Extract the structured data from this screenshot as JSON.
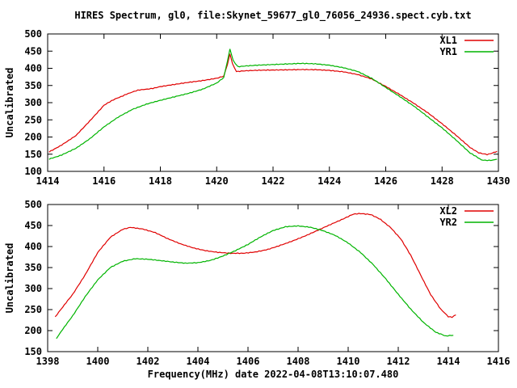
{
  "figure": {
    "title": "HIRES Spectrum, gl0, file:Skynet_59677_gl0_76056_24936.spect.cyb.txt",
    "xlabel": "Frequency(MHz) date 2022-04-08T13:10:07.480",
    "background": "#ffffff",
    "axis_color": "#000000",
    "series_colors": {
      "red": "#e00000",
      "green": "#00b400"
    }
  },
  "chart_data": [
    {
      "id": "top",
      "type": "line",
      "ylabel": "Uncalibrated",
      "xlim": [
        1414,
        1430
      ],
      "ylim": [
        100,
        500
      ],
      "xticks": [
        1414,
        1416,
        1418,
        1420,
        1422,
        1424,
        1426,
        1428,
        1430
      ],
      "yticks": [
        100,
        150,
        200,
        250,
        300,
        350,
        400,
        450,
        500
      ],
      "grid": false,
      "legend_position": "top-right",
      "series": [
        {
          "name": "XL1",
          "color": "#e00000",
          "points": [
            [
              1414.05,
              157
            ],
            [
              1414.5,
              178
            ],
            [
              1415,
              205
            ],
            [
              1415.5,
              248
            ],
            [
              1416,
              293
            ],
            [
              1416.4,
              310
            ],
            [
              1416.8,
              326
            ],
            [
              1417.2,
              335
            ],
            [
              1417.6,
              341
            ],
            [
              1418,
              346
            ],
            [
              1418.5,
              352
            ],
            [
              1419,
              358
            ],
            [
              1419.5,
              363
            ],
            [
              1420,
              370
            ],
            [
              1420.25,
              376
            ],
            [
              1420.38,
              410
            ],
            [
              1420.47,
              443
            ],
            [
              1420.56,
              412
            ],
            [
              1420.7,
              391
            ],
            [
              1421,
              392
            ],
            [
              1421.5,
              394
            ],
            [
              1422,
              395
            ],
            [
              1422.5,
              396
            ],
            [
              1423,
              397
            ],
            [
              1423.5,
              397
            ],
            [
              1424,
              395
            ],
            [
              1424.5,
              391
            ],
            [
              1425,
              383
            ],
            [
              1425.5,
              370
            ],
            [
              1426,
              348
            ],
            [
              1426.5,
              324
            ],
            [
              1427,
              298
            ],
            [
              1427.5,
              270
            ],
            [
              1428,
              238
            ],
            [
              1428.5,
              204
            ],
            [
              1429,
              168
            ],
            [
              1429.3,
              154
            ],
            [
              1429.6,
              150
            ],
            [
              1429.95,
              158
            ]
          ]
        },
        {
          "name": "YR1",
          "color": "#00b400",
          "points": [
            [
              1414.05,
              136
            ],
            [
              1414.5,
              149
            ],
            [
              1415,
              168
            ],
            [
              1415.5,
              196
            ],
            [
              1416,
              230
            ],
            [
              1416.5,
              258
            ],
            [
              1417,
              280
            ],
            [
              1417.5,
              295
            ],
            [
              1418,
              306
            ],
            [
              1418.5,
              316
            ],
            [
              1419,
              326
            ],
            [
              1419.5,
              338
            ],
            [
              1420,
              356
            ],
            [
              1420.25,
              372
            ],
            [
              1420.38,
              420
            ],
            [
              1420.47,
              457
            ],
            [
              1420.58,
              424
            ],
            [
              1420.75,
              404
            ],
            [
              1421,
              406
            ],
            [
              1421.5,
              409
            ],
            [
              1422,
              411
            ],
            [
              1422.5,
              413
            ],
            [
              1423,
              415
            ],
            [
              1423.5,
              414
            ],
            [
              1424,
              410
            ],
            [
              1424.5,
              403
            ],
            [
              1425,
              392
            ],
            [
              1425.5,
              372
            ],
            [
              1426,
              345
            ],
            [
              1426.5,
              318
            ],
            [
              1427,
              290
            ],
            [
              1427.5,
              258
            ],
            [
              1428,
              226
            ],
            [
              1428.5,
              190
            ],
            [
              1429,
              152
            ],
            [
              1429.4,
              134
            ],
            [
              1429.8,
              132
            ],
            [
              1429.95,
              135
            ]
          ]
        }
      ]
    },
    {
      "id": "bottom",
      "type": "line",
      "ylabel": "Uncalibrated",
      "xlim": [
        1398,
        1416
      ],
      "ylim": [
        150,
        500
      ],
      "xticks": [
        1398,
        1400,
        1402,
        1404,
        1406,
        1408,
        1410,
        1412,
        1414,
        1416
      ],
      "yticks": [
        150,
        200,
        250,
        300,
        350,
        400,
        450,
        500
      ],
      "grid": false,
      "legend_position": "top-right",
      "series": [
        {
          "name": "XL2",
          "color": "#e00000",
          "points": [
            [
              1398.3,
              232
            ],
            [
              1398.6,
              255
            ],
            [
              1399,
              286
            ],
            [
              1399.5,
              332
            ],
            [
              1400,
              385
            ],
            [
              1400.5,
              422
            ],
            [
              1401,
              442
            ],
            [
              1401.3,
              446
            ],
            [
              1401.8,
              441
            ],
            [
              1402.3,
              432
            ],
            [
              1402.8,
              418
            ],
            [
              1403.3,
              407
            ],
            [
              1403.8,
              398
            ],
            [
              1404.3,
              391
            ],
            [
              1404.8,
              386
            ],
            [
              1405.3,
              383
            ],
            [
              1405.8,
              383
            ],
            [
              1406.3,
              387
            ],
            [
              1406.8,
              394
            ],
            [
              1407.3,
              404
            ],
            [
              1407.8,
              414
            ],
            [
              1408.3,
              425
            ],
            [
              1408.8,
              438
            ],
            [
              1409.3,
              452
            ],
            [
              1409.8,
              466
            ],
            [
              1410.2,
              476
            ],
            [
              1410.5,
              479
            ],
            [
              1410.9,
              475
            ],
            [
              1411.3,
              464
            ],
            [
              1411.7,
              446
            ],
            [
              1412.1,
              418
            ],
            [
              1412.5,
              378
            ],
            [
              1412.9,
              332
            ],
            [
              1413.3,
              286
            ],
            [
              1413.7,
              250
            ],
            [
              1414,
              234
            ],
            [
              1414.15,
              233
            ],
            [
              1414.3,
              238
            ]
          ]
        },
        {
          "name": "YR2",
          "color": "#00b400",
          "points": [
            [
              1398.35,
              182
            ],
            [
              1398.6,
              202
            ],
            [
              1399,
              235
            ],
            [
              1399.5,
              280
            ],
            [
              1400,
              320
            ],
            [
              1400.5,
              350
            ],
            [
              1401,
              366
            ],
            [
              1401.5,
              372
            ],
            [
              1402,
              370
            ],
            [
              1402.5,
              366
            ],
            [
              1403,
              362
            ],
            [
              1403.5,
              360
            ],
            [
              1404,
              362
            ],
            [
              1404.5,
              368
            ],
            [
              1405,
              378
            ],
            [
              1405.5,
              390
            ],
            [
              1406,
              404
            ],
            [
              1406.5,
              422
            ],
            [
              1407,
              438
            ],
            [
              1407.5,
              448
            ],
            [
              1408,
              450
            ],
            [
              1408.5,
              446
            ],
            [
              1409,
              437
            ],
            [
              1409.5,
              425
            ],
            [
              1410,
              408
            ],
            [
              1410.5,
              386
            ],
            [
              1411,
              358
            ],
            [
              1411.5,
              324
            ],
            [
              1412,
              286
            ],
            [
              1412.5,
              250
            ],
            [
              1413,
              219
            ],
            [
              1413.5,
              196
            ],
            [
              1413.9,
              186
            ],
            [
              1414.2,
              189
            ]
          ]
        }
      ]
    }
  ]
}
